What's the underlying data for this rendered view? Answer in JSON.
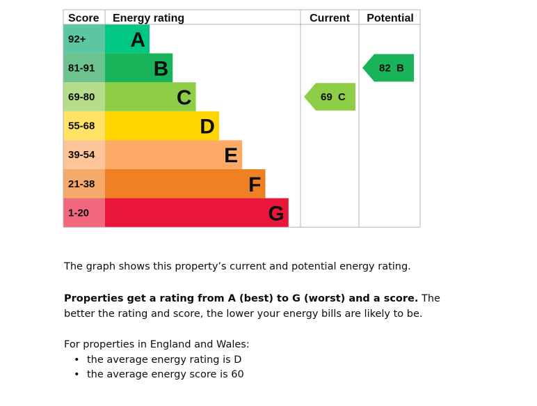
{
  "chart_data": {
    "type": "bar",
    "headers": {
      "score": "Score",
      "rating": "Energy rating",
      "current": "Current",
      "potential": "Potential"
    },
    "bands": [
      {
        "letter": "A",
        "range": "92+",
        "color": "#00c781",
        "score_color": "#5ac7a1"
      },
      {
        "letter": "B",
        "range": "81-91",
        "color": "#19b459",
        "score_color": "#6cc38f"
      },
      {
        "letter": "C",
        "range": "69-80",
        "color": "#8dce46",
        "score_color": "#b5dd8a"
      },
      {
        "letter": "D",
        "range": "55-68",
        "color": "#ffd500",
        "score_color": "#ffe266"
      },
      {
        "letter": "E",
        "range": "39-54",
        "color": "#fcaa65",
        "score_color": "#fdc597"
      },
      {
        "letter": "F",
        "range": "21-38",
        "color": "#ef8023",
        "score_color": "#f5a96a"
      },
      {
        "letter": "G",
        "range": "1-20",
        "color": "#e9153b",
        "score_color": "#f2697f"
      }
    ],
    "current": {
      "score": 69,
      "band": "C",
      "label": "69  C",
      "color": "#8dce46"
    },
    "potential": {
      "score": 82,
      "band": "B",
      "label": "82  B",
      "color": "#19b459"
    }
  },
  "text": {
    "intro": "The graph shows this property’s current and potential energy rating.",
    "rating_bold": "Properties get a rating from A (best) to G (worst) and a score.",
    "rating_rest": " The better the rating and score, the lower your energy bills are likely to be.",
    "england": "For properties in England and Wales:",
    "averages": [
      "the average energy rating is D",
      "the average energy score is 60"
    ]
  }
}
